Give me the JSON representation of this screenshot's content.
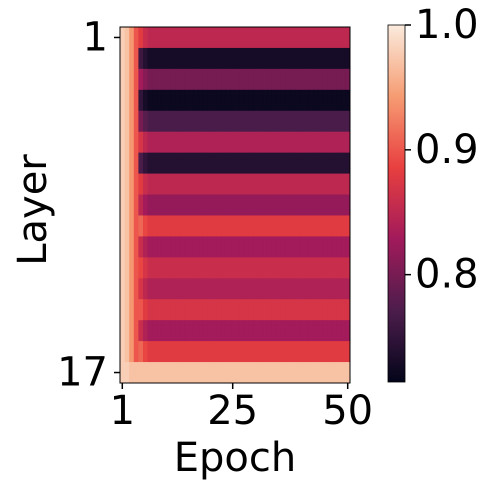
{
  "chart_data": {
    "type": "heatmap",
    "x_label": "Epoch",
    "y_label": "Layer",
    "y_categories": [
      "1",
      null,
      null,
      null,
      null,
      null,
      null,
      null,
      null,
      null,
      null,
      null,
      null,
      null,
      null,
      null,
      "17"
    ],
    "xlim": [
      0.5,
      50.5
    ],
    "xticks": [
      1,
      25,
      50
    ],
    "clim": [
      0.714,
      1.0
    ],
    "cticks": [
      0.8,
      0.9,
      {
        "value": 1.0,
        "label": "1.0"
      }
    ],
    "colormap": "rocket",
    "values": [
      [
        0.98,
        0.97,
        0.94,
        0.9,
        0.88,
        0.86,
        0.85,
        0.85,
        0.85,
        0.85,
        0.85,
        0.85,
        0.85,
        0.85,
        0.85,
        0.85,
        0.85,
        0.85,
        0.85,
        0.85,
        0.85,
        0.85,
        0.85,
        0.85,
        0.85,
        0.85,
        0.85,
        0.85,
        0.85,
        0.85,
        0.85,
        0.85,
        0.85,
        0.85,
        0.85,
        0.85,
        0.85,
        0.85,
        0.85,
        0.85,
        0.85,
        0.85,
        0.85,
        0.85,
        0.85,
        0.85,
        0.85,
        0.85,
        0.85,
        0.85
      ],
      [
        0.98,
        0.97,
        0.94,
        0.9,
        0.76,
        0.74,
        0.73,
        0.73,
        0.73,
        0.73,
        0.73,
        0.73,
        0.73,
        0.73,
        0.73,
        0.73,
        0.73,
        0.73,
        0.73,
        0.73,
        0.73,
        0.73,
        0.73,
        0.73,
        0.73,
        0.73,
        0.73,
        0.73,
        0.73,
        0.73,
        0.73,
        0.73,
        0.73,
        0.73,
        0.73,
        0.73,
        0.73,
        0.73,
        0.73,
        0.73,
        0.73,
        0.73,
        0.73,
        0.73,
        0.73,
        0.73,
        0.73,
        0.73,
        0.73,
        0.73
      ],
      [
        0.98,
        0.97,
        0.94,
        0.9,
        0.83,
        0.81,
        0.8,
        0.8,
        0.8,
        0.8,
        0.8,
        0.8,
        0.8,
        0.8,
        0.8,
        0.8,
        0.8,
        0.8,
        0.8,
        0.8,
        0.8,
        0.8,
        0.8,
        0.8,
        0.8,
        0.8,
        0.8,
        0.8,
        0.8,
        0.8,
        0.8,
        0.8,
        0.8,
        0.8,
        0.8,
        0.8,
        0.8,
        0.8,
        0.8,
        0.8,
        0.8,
        0.8,
        0.8,
        0.8,
        0.8,
        0.8,
        0.8,
        0.8,
        0.8,
        0.8
      ],
      [
        0.98,
        0.97,
        0.94,
        0.9,
        0.75,
        0.73,
        0.72,
        0.72,
        0.72,
        0.72,
        0.72,
        0.72,
        0.72,
        0.72,
        0.72,
        0.72,
        0.72,
        0.72,
        0.72,
        0.72,
        0.72,
        0.72,
        0.72,
        0.72,
        0.72,
        0.72,
        0.72,
        0.72,
        0.72,
        0.72,
        0.72,
        0.72,
        0.72,
        0.72,
        0.72,
        0.72,
        0.72,
        0.72,
        0.72,
        0.72,
        0.72,
        0.72,
        0.72,
        0.72,
        0.72,
        0.72,
        0.72,
        0.72,
        0.72,
        0.72
      ],
      [
        0.98,
        0.97,
        0.94,
        0.9,
        0.8,
        0.78,
        0.77,
        0.77,
        0.77,
        0.77,
        0.77,
        0.77,
        0.77,
        0.77,
        0.77,
        0.77,
        0.77,
        0.77,
        0.77,
        0.77,
        0.77,
        0.77,
        0.77,
        0.77,
        0.77,
        0.77,
        0.77,
        0.77,
        0.77,
        0.77,
        0.77,
        0.77,
        0.77,
        0.77,
        0.77,
        0.77,
        0.77,
        0.77,
        0.77,
        0.77,
        0.77,
        0.77,
        0.77,
        0.77,
        0.77,
        0.77,
        0.77,
        0.77,
        0.77,
        0.77
      ],
      [
        0.98,
        0.97,
        0.94,
        0.9,
        0.87,
        0.85,
        0.84,
        0.84,
        0.84,
        0.84,
        0.84,
        0.84,
        0.84,
        0.84,
        0.84,
        0.84,
        0.84,
        0.84,
        0.84,
        0.84,
        0.84,
        0.84,
        0.84,
        0.84,
        0.84,
        0.84,
        0.84,
        0.84,
        0.84,
        0.84,
        0.84,
        0.84,
        0.84,
        0.84,
        0.84,
        0.84,
        0.84,
        0.84,
        0.84,
        0.84,
        0.84,
        0.84,
        0.84,
        0.84,
        0.84,
        0.84,
        0.84,
        0.84,
        0.84,
        0.84
      ],
      [
        0.98,
        0.97,
        0.94,
        0.9,
        0.77,
        0.75,
        0.74,
        0.74,
        0.74,
        0.74,
        0.74,
        0.74,
        0.74,
        0.74,
        0.74,
        0.74,
        0.74,
        0.74,
        0.74,
        0.74,
        0.74,
        0.74,
        0.74,
        0.74,
        0.74,
        0.74,
        0.74,
        0.74,
        0.74,
        0.74,
        0.74,
        0.74,
        0.74,
        0.74,
        0.74,
        0.74,
        0.74,
        0.74,
        0.74,
        0.74,
        0.74,
        0.74,
        0.74,
        0.74,
        0.74,
        0.74,
        0.74,
        0.74,
        0.74,
        0.74
      ],
      [
        0.98,
        0.97,
        0.94,
        0.9,
        0.88,
        0.86,
        0.85,
        0.85,
        0.85,
        0.85,
        0.85,
        0.85,
        0.85,
        0.85,
        0.85,
        0.85,
        0.85,
        0.85,
        0.85,
        0.85,
        0.85,
        0.85,
        0.85,
        0.85,
        0.85,
        0.85,
        0.85,
        0.85,
        0.85,
        0.85,
        0.85,
        0.85,
        0.85,
        0.85,
        0.85,
        0.85,
        0.85,
        0.85,
        0.85,
        0.85,
        0.85,
        0.85,
        0.85,
        0.85,
        0.85,
        0.85,
        0.85,
        0.85,
        0.85,
        0.85
      ],
      [
        0.98,
        0.97,
        0.94,
        0.9,
        0.85,
        0.83,
        0.82,
        0.82,
        0.82,
        0.82,
        0.82,
        0.82,
        0.82,
        0.82,
        0.82,
        0.82,
        0.82,
        0.82,
        0.82,
        0.82,
        0.82,
        0.82,
        0.82,
        0.82,
        0.82,
        0.82,
        0.82,
        0.82,
        0.82,
        0.82,
        0.82,
        0.82,
        0.82,
        0.82,
        0.82,
        0.82,
        0.82,
        0.82,
        0.82,
        0.82,
        0.82,
        0.82,
        0.82,
        0.82,
        0.82,
        0.82,
        0.82,
        0.82,
        0.82,
        0.82
      ],
      [
        0.98,
        0.97,
        0.94,
        0.9,
        0.91,
        0.89,
        0.88,
        0.88,
        0.88,
        0.88,
        0.88,
        0.88,
        0.88,
        0.88,
        0.88,
        0.88,
        0.88,
        0.88,
        0.88,
        0.88,
        0.88,
        0.88,
        0.88,
        0.88,
        0.88,
        0.88,
        0.88,
        0.88,
        0.88,
        0.88,
        0.88,
        0.88,
        0.88,
        0.88,
        0.88,
        0.88,
        0.88,
        0.88,
        0.88,
        0.88,
        0.88,
        0.88,
        0.88,
        0.88,
        0.88,
        0.88,
        0.88,
        0.88,
        0.88,
        0.88
      ],
      [
        0.98,
        0.97,
        0.94,
        0.9,
        0.86,
        0.84,
        0.83,
        0.83,
        0.83,
        0.83,
        0.83,
        0.83,
        0.83,
        0.83,
        0.83,
        0.83,
        0.83,
        0.83,
        0.83,
        0.83,
        0.83,
        0.83,
        0.83,
        0.83,
        0.83,
        0.83,
        0.83,
        0.83,
        0.83,
        0.83,
        0.83,
        0.83,
        0.83,
        0.83,
        0.83,
        0.83,
        0.83,
        0.83,
        0.83,
        0.83,
        0.83,
        0.83,
        0.83,
        0.83,
        0.83,
        0.83,
        0.83,
        0.83,
        0.83,
        0.83
      ],
      [
        0.98,
        0.97,
        0.94,
        0.9,
        0.89,
        0.87,
        0.86,
        0.86,
        0.86,
        0.86,
        0.86,
        0.86,
        0.86,
        0.86,
        0.86,
        0.86,
        0.86,
        0.86,
        0.86,
        0.86,
        0.86,
        0.86,
        0.86,
        0.86,
        0.86,
        0.86,
        0.86,
        0.86,
        0.86,
        0.86,
        0.86,
        0.86,
        0.86,
        0.86,
        0.86,
        0.86,
        0.86,
        0.86,
        0.86,
        0.86,
        0.86,
        0.86,
        0.86,
        0.86,
        0.86,
        0.86,
        0.86,
        0.86,
        0.86,
        0.86
      ],
      [
        0.98,
        0.97,
        0.94,
        0.9,
        0.87,
        0.85,
        0.84,
        0.84,
        0.84,
        0.84,
        0.84,
        0.84,
        0.84,
        0.84,
        0.84,
        0.84,
        0.84,
        0.84,
        0.84,
        0.84,
        0.84,
        0.84,
        0.84,
        0.84,
        0.84,
        0.84,
        0.84,
        0.84,
        0.84,
        0.84,
        0.84,
        0.84,
        0.84,
        0.84,
        0.84,
        0.84,
        0.84,
        0.84,
        0.84,
        0.84,
        0.84,
        0.84,
        0.84,
        0.84,
        0.84,
        0.84,
        0.84,
        0.84,
        0.84,
        0.84
      ],
      [
        0.98,
        0.97,
        0.94,
        0.9,
        0.9,
        0.88,
        0.87,
        0.87,
        0.87,
        0.87,
        0.87,
        0.87,
        0.87,
        0.87,
        0.87,
        0.87,
        0.87,
        0.87,
        0.87,
        0.87,
        0.87,
        0.87,
        0.87,
        0.87,
        0.87,
        0.87,
        0.87,
        0.87,
        0.87,
        0.87,
        0.87,
        0.87,
        0.87,
        0.87,
        0.87,
        0.87,
        0.87,
        0.87,
        0.87,
        0.87,
        0.87,
        0.87,
        0.87,
        0.87,
        0.87,
        0.87,
        0.87,
        0.87,
        0.87,
        0.87
      ],
      [
        0.98,
        0.97,
        0.94,
        0.9,
        0.86,
        0.84,
        0.83,
        0.83,
        0.83,
        0.83,
        0.83,
        0.83,
        0.83,
        0.83,
        0.83,
        0.83,
        0.83,
        0.83,
        0.83,
        0.83,
        0.83,
        0.83,
        0.83,
        0.83,
        0.83,
        0.83,
        0.83,
        0.83,
        0.83,
        0.83,
        0.83,
        0.83,
        0.83,
        0.83,
        0.83,
        0.83,
        0.83,
        0.83,
        0.83,
        0.83,
        0.83,
        0.83,
        0.83,
        0.83,
        0.83,
        0.83,
        0.83,
        0.83,
        0.83,
        0.83
      ],
      [
        0.98,
        0.97,
        0.94,
        0.9,
        0.91,
        0.89,
        0.88,
        0.88,
        0.88,
        0.88,
        0.88,
        0.88,
        0.88,
        0.88,
        0.88,
        0.88,
        0.88,
        0.88,
        0.88,
        0.88,
        0.88,
        0.88,
        0.88,
        0.88,
        0.88,
        0.88,
        0.88,
        0.88,
        0.88,
        0.88,
        0.88,
        0.88,
        0.88,
        0.88,
        0.88,
        0.88,
        0.88,
        0.88,
        0.88,
        0.88,
        0.88,
        0.88,
        0.88,
        0.88,
        0.88,
        0.88,
        0.88,
        0.88,
        0.88,
        0.88
      ],
      [
        0.98,
        0.98,
        0.97,
        0.97,
        0.97,
        0.97,
        0.97,
        0.97,
        0.97,
        0.97,
        0.97,
        0.97,
        0.97,
        0.97,
        0.97,
        0.97,
        0.97,
        0.97,
        0.97,
        0.97,
        0.97,
        0.97,
        0.97,
        0.97,
        0.97,
        0.97,
        0.97,
        0.97,
        0.97,
        0.97,
        0.97,
        0.97,
        0.97,
        0.97,
        0.97,
        0.97,
        0.97,
        0.97,
        0.97,
        0.97,
        0.97,
        0.97,
        0.97,
        0.97,
        0.97,
        0.97,
        0.97,
        0.97,
        0.97,
        0.97
      ]
    ]
  }
}
